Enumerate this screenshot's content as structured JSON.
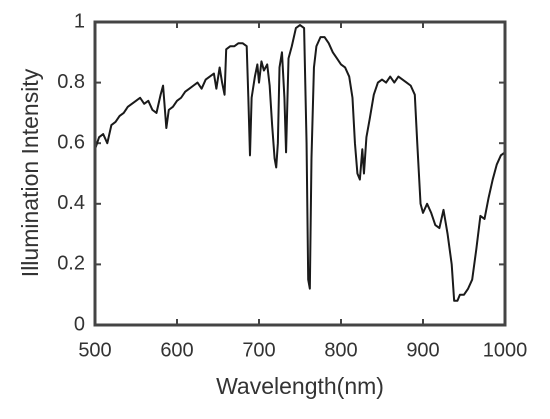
{
  "chart_data": {
    "type": "line",
    "xlabel": "Wavelength(nm)",
    "ylabel": "Illumination Intensity",
    "x": [
      500,
      505,
      510,
      515,
      520,
      525,
      530,
      535,
      540,
      545,
      550,
      555,
      560,
      565,
      570,
      575,
      580,
      583,
      587,
      590,
      595,
      600,
      605,
      610,
      615,
      620,
      625,
      630,
      635,
      640,
      645,
      648,
      652,
      655,
      658,
      660,
      665,
      670,
      675,
      680,
      685,
      687,
      689,
      691,
      695,
      698,
      700,
      703,
      706,
      710,
      713,
      716,
      719,
      721,
      723,
      725,
      728,
      731,
      733,
      736,
      740,
      745,
      750,
      755,
      758,
      760,
      762,
      764,
      767,
      770,
      775,
      780,
      785,
      790,
      795,
      800,
      805,
      810,
      814,
      817,
      820,
      823,
      826,
      828,
      831,
      835,
      840,
      845,
      850,
      855,
      860,
      865,
      870,
      875,
      880,
      885,
      890,
      893,
      897,
      900,
      905,
      910,
      915,
      920,
      925,
      930,
      935,
      938,
      942,
      945,
      950,
      955,
      960,
      965,
      970,
      975,
      980,
      985,
      990,
      995,
      1000
    ],
    "values": [
      0.58,
      0.62,
      0.63,
      0.6,
      0.66,
      0.67,
      0.69,
      0.7,
      0.72,
      0.73,
      0.74,
      0.75,
      0.73,
      0.74,
      0.71,
      0.7,
      0.76,
      0.79,
      0.65,
      0.71,
      0.72,
      0.74,
      0.75,
      0.77,
      0.78,
      0.79,
      0.8,
      0.78,
      0.81,
      0.82,
      0.83,
      0.78,
      0.85,
      0.8,
      0.76,
      0.91,
      0.92,
      0.92,
      0.93,
      0.93,
      0.92,
      0.75,
      0.56,
      0.75,
      0.82,
      0.86,
      0.8,
      0.87,
      0.84,
      0.86,
      0.79,
      0.66,
      0.55,
      0.52,
      0.6,
      0.85,
      0.9,
      0.75,
      0.57,
      0.88,
      0.92,
      0.98,
      0.99,
      0.98,
      0.6,
      0.15,
      0.12,
      0.55,
      0.85,
      0.92,
      0.95,
      0.95,
      0.93,
      0.9,
      0.88,
      0.86,
      0.85,
      0.82,
      0.75,
      0.6,
      0.5,
      0.48,
      0.58,
      0.5,
      0.62,
      0.68,
      0.76,
      0.8,
      0.81,
      0.8,
      0.82,
      0.8,
      0.82,
      0.81,
      0.8,
      0.79,
      0.76,
      0.6,
      0.4,
      0.37,
      0.4,
      0.37,
      0.33,
      0.32,
      0.38,
      0.3,
      0.2,
      0.08,
      0.08,
      0.1,
      0.1,
      0.12,
      0.15,
      0.25,
      0.36,
      0.35,
      0.42,
      0.48,
      0.53,
      0.56,
      0.57
    ],
    "color": "#1a1a1a",
    "xlim": [
      500,
      1000
    ],
    "xticks": [
      500,
      600,
      700,
      800,
      900,
      1000
    ],
    "ylim": [
      0,
      1
    ],
    "yticks": [
      0,
      0.2,
      0.4,
      0.6,
      0.8,
      1
    ]
  }
}
